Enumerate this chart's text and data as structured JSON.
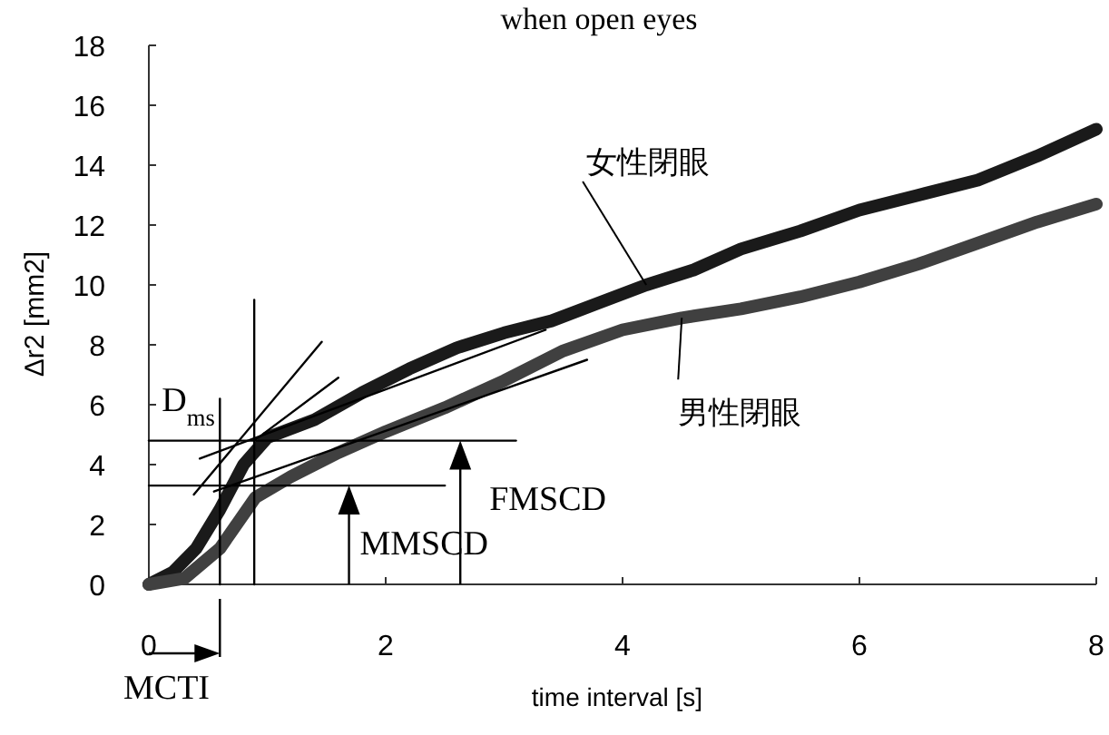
{
  "chart_data": {
    "type": "line",
    "title": "when open eyes",
    "xlabel": "time interval [s]",
    "ylabel": "Δr2 [mm2]",
    "xlim": [
      0,
      8
    ],
    "xticks": [
      0,
      2,
      4,
      6,
      8
    ],
    "ylim": [
      0,
      18
    ],
    "yticks": [
      0,
      2,
      4,
      6,
      8,
      10,
      12,
      14,
      16,
      18
    ],
    "grid": false,
    "marker": "none",
    "series": [
      {
        "name": "女性閉眼",
        "color": "#1a1a1a",
        "x": [
          0,
          0.2,
          0.4,
          0.6,
          0.8,
          1.0,
          1.4,
          1.8,
          2.2,
          2.6,
          3.0,
          3.4,
          3.8,
          4.2,
          4.6,
          5.0,
          5.5,
          6.0,
          6.5,
          7.0,
          7.5,
          8.0
        ],
        "values": [
          0,
          0.4,
          1.2,
          2.5,
          4.0,
          4.9,
          5.5,
          6.4,
          7.2,
          7.9,
          8.4,
          8.8,
          9.4,
          10.0,
          10.5,
          11.2,
          11.8,
          12.5,
          13.0,
          13.5,
          14.3,
          15.2
        ]
      },
      {
        "name": "男性閉眼",
        "color": "#404040",
        "x": [
          0,
          0.3,
          0.6,
          0.9,
          1.2,
          1.6,
          2.0,
          2.5,
          3.0,
          3.5,
          4.0,
          4.5,
          5.0,
          5.5,
          6.0,
          6.5,
          7.0,
          7.5,
          8.0
        ],
        "values": [
          0,
          0.2,
          1.2,
          2.9,
          3.6,
          4.4,
          5.1,
          5.9,
          6.8,
          7.8,
          8.5,
          8.9,
          9.2,
          9.6,
          10.1,
          10.7,
          11.4,
          12.1,
          12.7
        ]
      },
      {
        "color": "#000000",
        "x": [
          0.38,
          1.46
        ],
        "values": [
          3.0,
          8.1
        ]
      },
      {
        "color": "#000000",
        "x": [
          0.89,
          1.6
        ],
        "values": [
          4.8,
          6.9
        ]
      },
      {
        "color": "#000000",
        "x": [
          0.43,
          3.35
        ],
        "values": [
          4.2,
          8.5
        ]
      },
      {
        "color": "#000000",
        "x": [
          0.55,
          3.7
        ],
        "values": [
          3.1,
          7.5
        ]
      },
      {
        "color": "#000000",
        "x": [
          0,
          3.1
        ],
        "values": [
          4.8,
          4.8
        ]
      },
      {
        "color": "#000000",
        "x": [
          0,
          2.5
        ],
        "values": [
          3.3,
          3.3
        ]
      },
      {
        "color": "#000000",
        "x": [
          0.89,
          0.89
        ],
        "values": [
          0,
          9.5
        ]
      },
      {
        "color": "#000000",
        "x": [
          0.6,
          0.6
        ],
        "values": [
          0,
          6.2
        ]
      }
    ],
    "annotations": [
      {
        "text": "FMSCD",
        "x": 2.63,
        "y": 4.8
      },
      {
        "text": "MMSCD",
        "x": 1.69,
        "y": 3.3
      },
      {
        "text": "D$_{ms}$",
        "x": 0.6,
        "y": 6.2
      },
      {
        "text": "MCTI",
        "x": 0.6,
        "y": 0
      }
    ]
  }
}
